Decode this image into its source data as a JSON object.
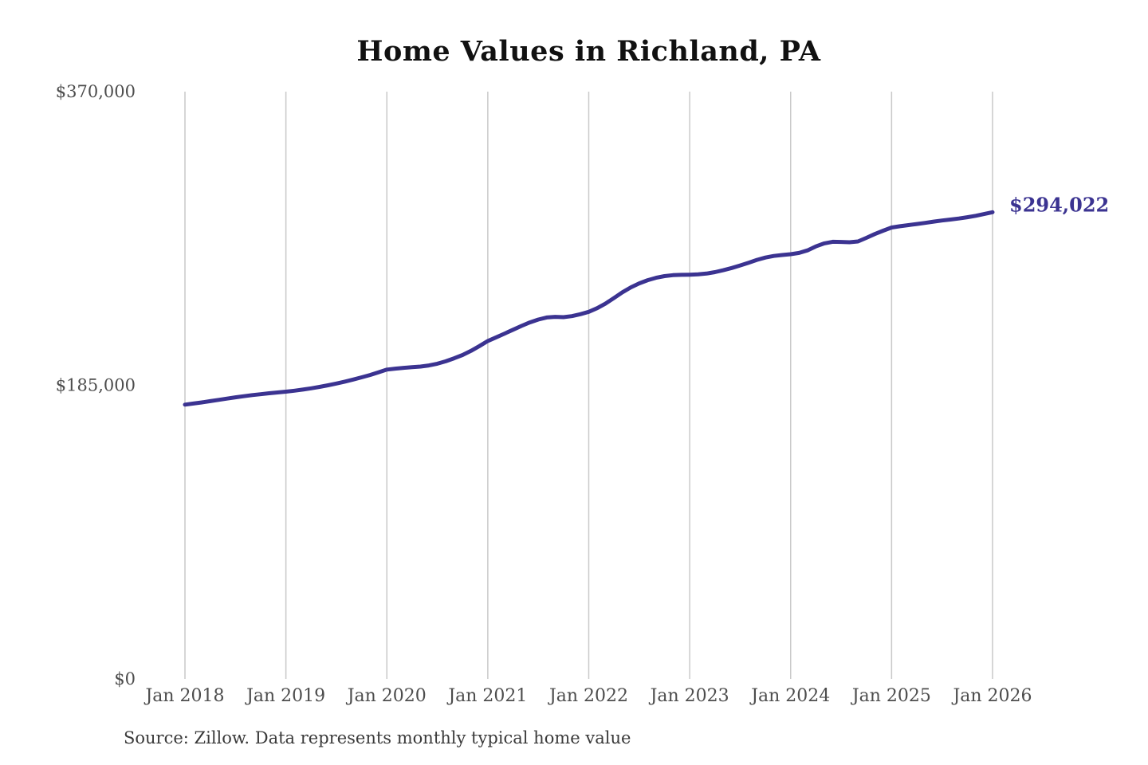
{
  "figure": {
    "title": "Home Values in Richland, PA",
    "source_note": "Source: Zillow. Data represents monthly typical home value"
  },
  "chart_data": {
    "type": "line",
    "title": "Home Values in Richland, PA",
    "xlabel": "",
    "ylabel": "",
    "ylim": [
      0,
      370000
    ],
    "grid": "vertical-only",
    "legend": "none",
    "x_tick_labels": [
      "Jan 2018",
      "Jan 2019",
      "Jan 2020",
      "Jan 2021",
      "Jan 2022",
      "Jan 2023",
      "Jan 2024",
      "Jan 2025",
      "Jan 2026"
    ],
    "y_ticks": [
      {
        "label": "$0",
        "value": 0
      },
      {
        "label": "$185,000",
        "value": 185000
      },
      {
        "label": "$370,000",
        "value": 370000
      }
    ],
    "end_annotation": {
      "label": "$294,022",
      "value": 294022
    },
    "series": [
      {
        "name": "Typical home value (USD)",
        "frequency": "monthly",
        "start": "Jan 2018",
        "end": "Jan 2026",
        "values": [
          172800,
          173500,
          174200,
          175000,
          175800,
          176600,
          177400,
          178100,
          178800,
          179400,
          180000,
          180500,
          181000,
          181600,
          182300,
          183100,
          184000,
          185000,
          186100,
          187300,
          188600,
          190000,
          191500,
          193200,
          194900,
          195500,
          196000,
          196400,
          196800,
          197500,
          198600,
          200100,
          202000,
          204100,
          206700,
          209700,
          212900,
          215200,
          217600,
          220000,
          222400,
          224600,
          226400,
          227700,
          228100,
          227900,
          228600,
          229800,
          231300,
          233600,
          236500,
          240000,
          243600,
          246700,
          249200,
          251200,
          252700,
          253800,
          254400,
          254600,
          254700,
          254900,
          255400,
          256300,
          257500,
          258900,
          260500,
          262200,
          264000,
          265500,
          266500,
          267100,
          267600,
          268400,
          270000,
          272500,
          274400,
          275400,
          275300,
          275100,
          275600,
          277900,
          280300,
          282400,
          284400,
          285200,
          285900,
          286600,
          287300,
          288100,
          288800,
          289400,
          290100,
          290900,
          291800,
          292900,
          294022
        ]
      }
    ],
    "colors": {
      "line": "#3b3391",
      "gridline": "#c9c9c9",
      "tick_label": "#4d4d4d",
      "title": "#111111",
      "annotation": "#3b3391",
      "source": "#3a3a3a",
      "background": "#ffffff"
    }
  }
}
